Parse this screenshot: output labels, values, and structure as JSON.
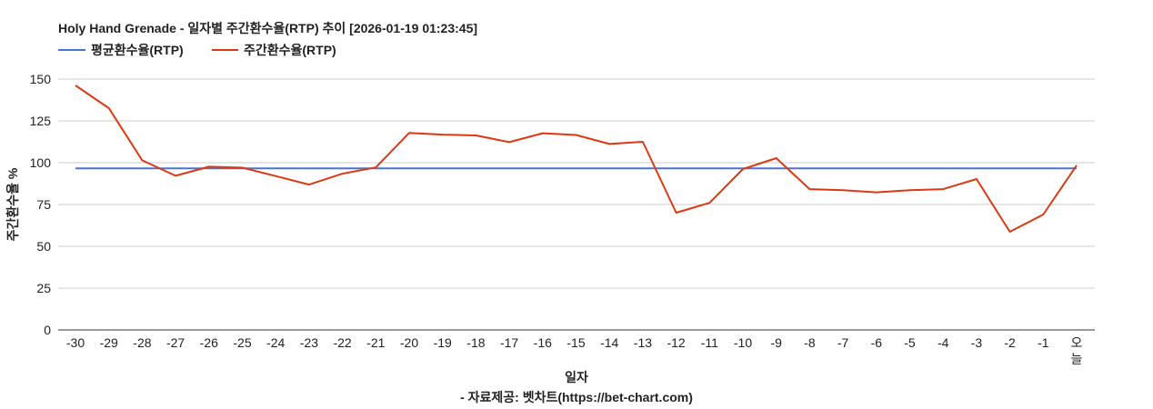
{
  "chart_data": {
    "type": "line",
    "title": "Holy Hand Grenade - 일자별 주간환수율(RTP) 추이 [2026-01-19 01:23:45]",
    "xlabel": "일자",
    "ylabel": "주간환수율 %",
    "source": "- 자료제공: 벳차트(https://bet-chart.com)",
    "ylim": [
      0,
      150
    ],
    "yticks": [
      "0",
      "25",
      "50",
      "75",
      "100",
      "125",
      "150"
    ],
    "grid": true,
    "legend_position": "top-left",
    "categories": [
      "-30",
      "-29",
      "-28",
      "-27",
      "-26",
      "-25",
      "-24",
      "-23",
      "-22",
      "-21",
      "-20",
      "-19",
      "-18",
      "-17",
      "-16",
      "-15",
      "-14",
      "-13",
      "-12",
      "-11",
      "-10",
      "-9",
      "-8",
      "-7",
      "-6",
      "-5",
      "-4",
      "-3",
      "-2",
      "-1",
      "오늘"
    ],
    "series": [
      {
        "name": "평균환수율(RTP)",
        "color": "#4a74d4",
        "values": [
          96.6,
          96.6,
          96.6,
          96.6,
          96.6,
          96.6,
          96.6,
          96.6,
          96.6,
          96.6,
          96.6,
          96.6,
          96.6,
          96.6,
          96.6,
          96.6,
          96.6,
          96.6,
          96.6,
          96.6,
          96.6,
          96.6,
          96.6,
          96.6,
          96.6,
          96.6,
          96.6,
          96.6,
          96.6,
          96.6,
          96.6
        ]
      },
      {
        "name": "주간환수율(RTP)",
        "color": "#dc3912",
        "values": [
          146.2,
          132.6,
          101.4,
          92.2,
          97.6,
          97.0,
          92.0,
          86.9,
          93.4,
          97.2,
          117.8,
          116.8,
          116.3,
          112.3,
          117.6,
          116.6,
          111.2,
          112.5,
          70.1,
          76.0,
          96.2,
          102.7,
          84.2,
          83.6,
          82.3,
          83.6,
          84.2,
          90.2,
          58.7,
          69.0,
          98.4
        ]
      }
    ]
  }
}
